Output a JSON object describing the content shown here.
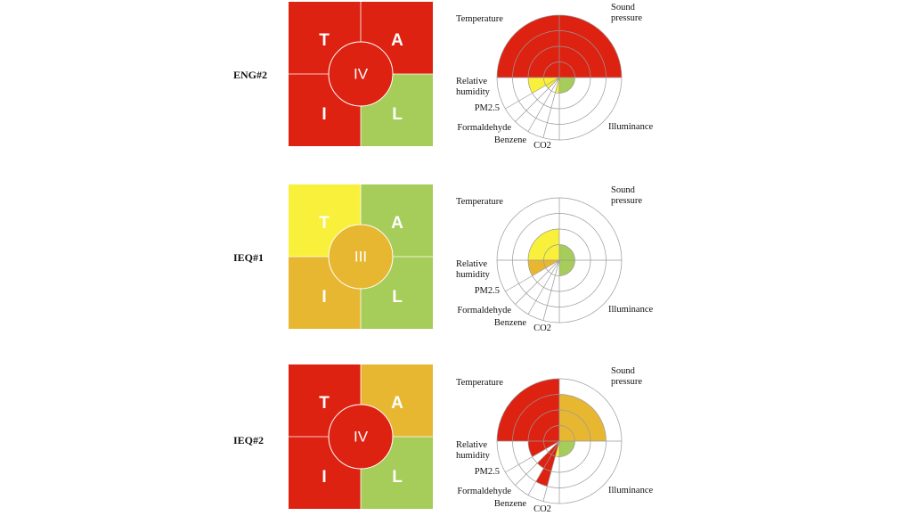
{
  "colors": {
    "red": "#dd2211",
    "yellow": "#f8f03a",
    "amber": "#e8b732",
    "green": "#a6cc5a",
    "grid": "#999999",
    "divider": "#ffffff"
  },
  "axes": [
    "Temperature",
    "Sound pressure",
    "Illuminance",
    "CO2",
    "Benzene",
    "Formaldehyde",
    "PM2.5",
    "Relative humidity"
  ],
  "quadrant_letters": {
    "thermal": "T",
    "acoustic": "A",
    "indoor_air": "I",
    "lighting": "L"
  },
  "panels": [
    {
      "label": "ENG#2",
      "overall": "IV",
      "center_color": "red",
      "quadrants": {
        "T": "red",
        "A": "red",
        "I": "red",
        "L": "green"
      },
      "radar": [
        {
          "axis": "Sound pressure",
          "level": 4,
          "color": "red"
        },
        {
          "axis": "Illuminance",
          "level": 1,
          "color": "green"
        },
        {
          "axis": "CO2",
          "level": 1,
          "color": "yellow"
        },
        {
          "axis": "Benzene",
          "level": 0,
          "color": "green"
        },
        {
          "axis": "Formaldehyde",
          "level": 0,
          "color": "green"
        },
        {
          "axis": "PM2.5",
          "level": 1,
          "color": "yellow"
        },
        {
          "axis": "Relative humidity",
          "level": 2,
          "color": "yellow"
        },
        {
          "axis": "Temperature",
          "level": 4,
          "color": "red"
        }
      ]
    },
    {
      "label": "IEQ#1",
      "overall": "III",
      "center_color": "amber",
      "quadrants": {
        "T": "yellow",
        "A": "green",
        "I": "amber",
        "L": "green"
      },
      "radar": [
        {
          "axis": "Sound pressure",
          "level": 1,
          "color": "green"
        },
        {
          "axis": "Illuminance",
          "level": 1,
          "color": "green"
        },
        {
          "axis": "CO2",
          "level": 0,
          "color": "green"
        },
        {
          "axis": "Benzene",
          "level": 0,
          "color": "green"
        },
        {
          "axis": "Formaldehyde",
          "level": 0,
          "color": "green"
        },
        {
          "axis": "PM2.5",
          "level": 0,
          "color": "green"
        },
        {
          "axis": "Relative humidity",
          "level": 2,
          "color": "amber"
        },
        {
          "axis": "Temperature",
          "level": 2,
          "color": "yellow"
        }
      ]
    },
    {
      "label": "IEQ#2",
      "overall": "IV",
      "center_color": "red",
      "quadrants": {
        "T": "red",
        "A": "amber",
        "I": "red",
        "L": "green"
      },
      "radar": [
        {
          "axis": "Sound pressure",
          "level": 3,
          "color": "amber"
        },
        {
          "axis": "Illuminance",
          "level": 1,
          "color": "green"
        },
        {
          "axis": "CO2",
          "level": 1,
          "color": "yellow"
        },
        {
          "axis": "Benzene",
          "level": 3,
          "color": "red"
        },
        {
          "axis": "Formaldehyde",
          "level": 2,
          "color": "red"
        },
        {
          "axis": "PM2.5",
          "level": 0,
          "color": "green"
        },
        {
          "axis": "Relative humidity",
          "level": 2,
          "color": "red"
        },
        {
          "axis": "Temperature",
          "level": 4,
          "color": "red"
        }
      ]
    }
  ]
}
